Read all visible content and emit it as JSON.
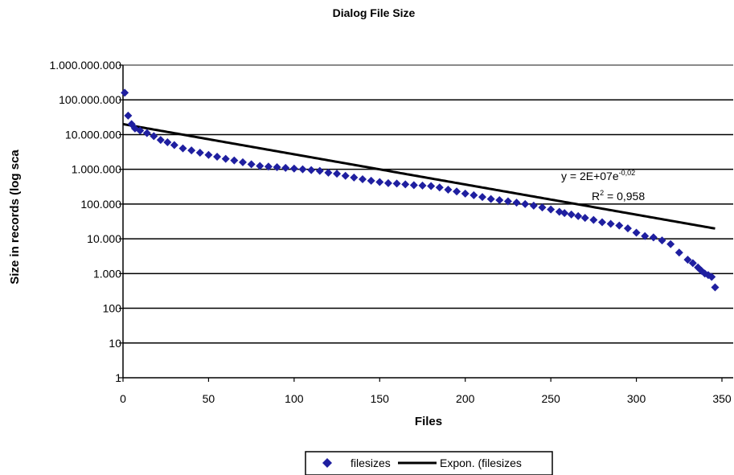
{
  "chart_data": {
    "type": "scatter",
    "title": "Dialog File Size",
    "xlabel": "Files",
    "ylabel": "Size in records (log sca",
    "xlim": [
      0,
      350
    ],
    "ylim": [
      1,
      1000000000
    ],
    "y_scale": "log",
    "x_ticks": [
      "0",
      "50",
      "100",
      "150",
      "200",
      "250",
      "300",
      "350"
    ],
    "y_ticks": [
      "1",
      "10",
      "100",
      "1.000",
      "10.000",
      "100.000",
      "1.000.000",
      "10.000.000",
      "100.000.000",
      "1.000.000.000"
    ],
    "grid": "horizontal",
    "legend_position": "bottom",
    "series": [
      {
        "name": "filesizes",
        "marker": "diamond",
        "color": "#1f1fa0",
        "x": [
          1,
          3,
          5,
          7,
          10,
          14,
          18,
          22,
          26,
          30,
          35,
          40,
          45,
          50,
          55,
          60,
          65,
          70,
          75,
          80,
          85,
          90,
          95,
          100,
          105,
          110,
          115,
          120,
          125,
          130,
          135,
          140,
          145,
          150,
          155,
          160,
          165,
          170,
          175,
          180,
          185,
          190,
          195,
          200,
          205,
          210,
          215,
          220,
          225,
          230,
          235,
          240,
          245,
          250,
          255,
          258,
          262,
          266,
          270,
          275,
          280,
          285,
          290,
          295,
          300,
          305,
          310,
          315,
          320,
          325,
          330,
          333,
          336,
          338,
          340,
          342,
          344,
          346
        ],
        "y": [
          160000000,
          35000000,
          20000000,
          15000000,
          13000000,
          11000000,
          9000000,
          7000000,
          6000000,
          5000000,
          4000000,
          3500000,
          3000000,
          2600000,
          2300000,
          2000000,
          1800000,
          1600000,
          1400000,
          1250000,
          1200000,
          1150000,
          1100000,
          1050000,
          1000000,
          950000,
          900000,
          800000,
          750000,
          650000,
          580000,
          520000,
          470000,
          430000,
          400000,
          390000,
          370000,
          350000,
          340000,
          330000,
          300000,
          260000,
          230000,
          200000,
          180000,
          160000,
          140000,
          130000,
          120000,
          110000,
          100000,
          90000,
          80000,
          70000,
          60000,
          55000,
          50000,
          45000,
          40000,
          35000,
          30000,
          27000,
          24000,
          20000,
          15000,
          12000,
          11000,
          9000,
          7000,
          4000,
          2500,
          2000,
          1500,
          1200,
          1000,
          900,
          800,
          400
        ]
      },
      {
        "name": "Expon. (filesizes",
        "color": "#000000",
        "line_width": 3,
        "model": {
          "a": 20000000,
          "b": -0.02
        }
      }
    ],
    "annotations": [
      "y = 2E+07e",
      "-0,02",
      "R",
      "2",
      " = 0,958"
    ]
  }
}
